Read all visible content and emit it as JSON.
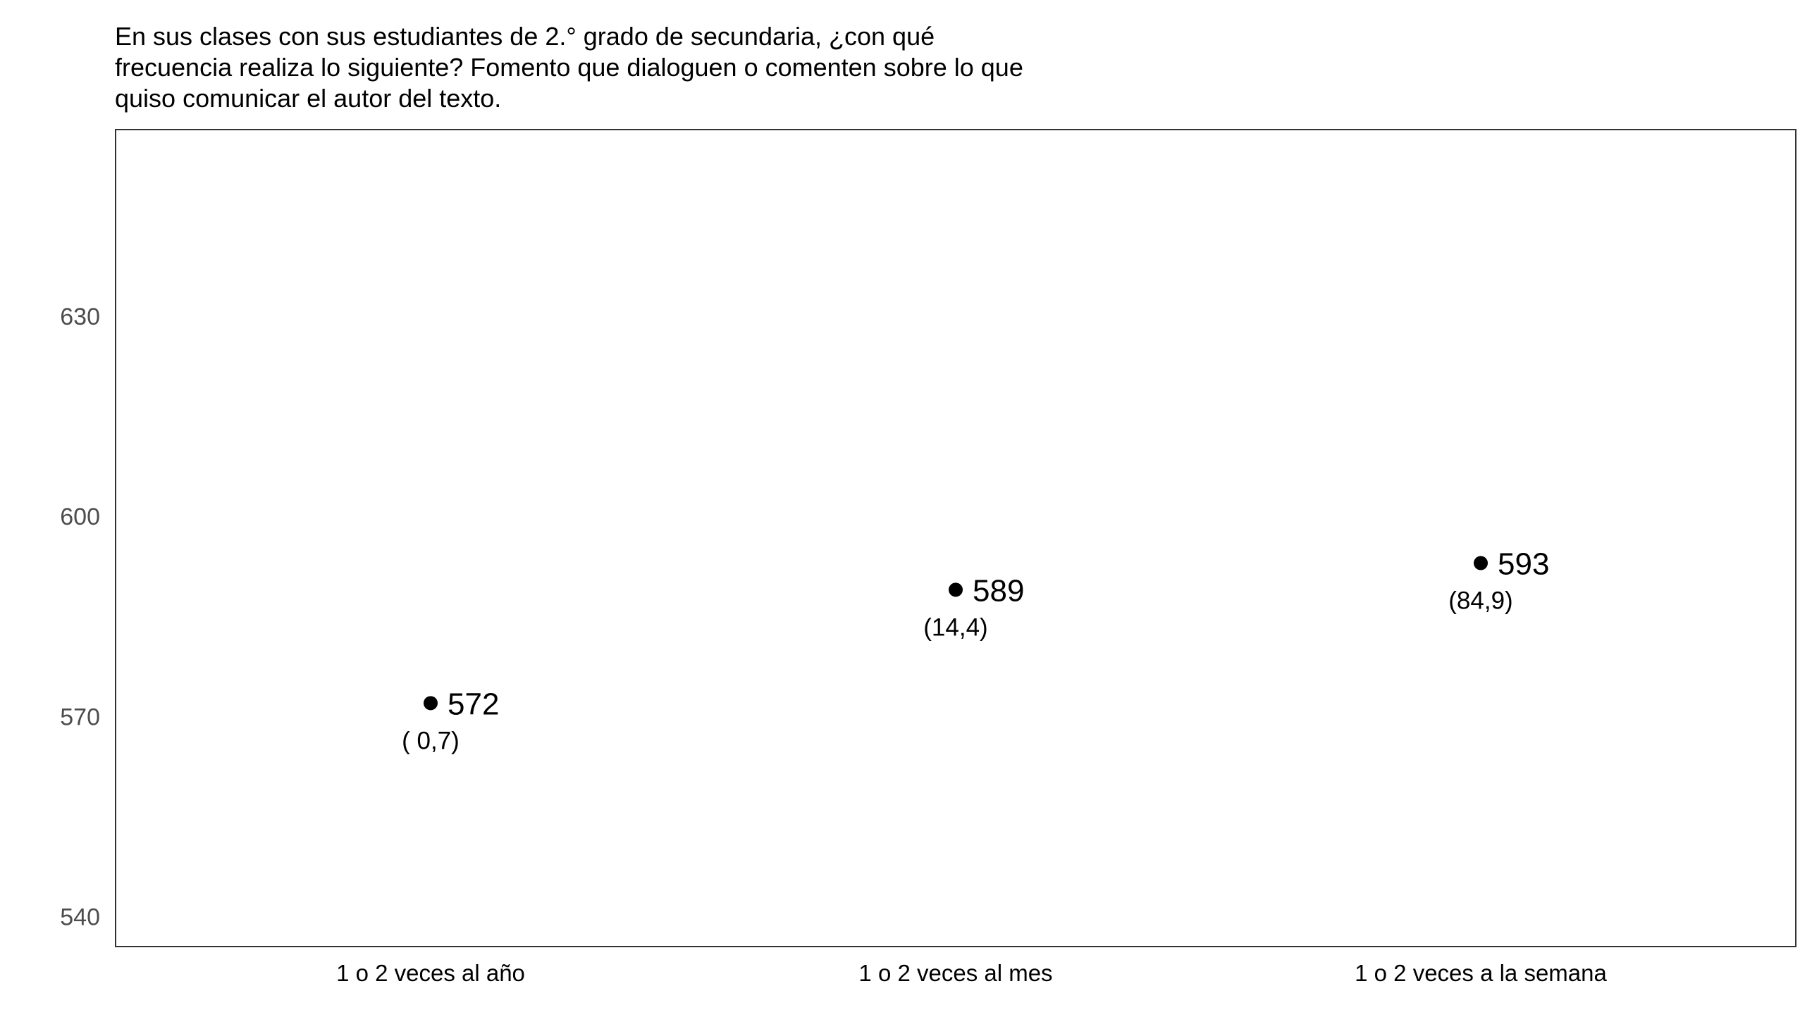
{
  "chart_data": {
    "type": "scatter",
    "title_lines": [
      "En sus clases con sus estudiantes de 2.° grado de secundaria, ¿con qué",
      "frecuencia realiza lo siguiente? Fomento que dialoguen o comenten sobre lo que",
      "quiso comunicar el autor del texto."
    ],
    "categories": [
      "1 o 2 veces al año",
      "1 o 2 veces al mes",
      "1 o 2 veces a la semana"
    ],
    "values": [
      572,
      589,
      593
    ],
    "value_labels": [
      "572",
      "589",
      "593"
    ],
    "percent_labels": [
      "( 0,7)",
      "(14,4)",
      "(84,9)"
    ],
    "ylim": [
      535.5,
      658
    ],
    "yticks": [
      540,
      570,
      600,
      630
    ],
    "ytick_labels": [
      "540",
      "570",
      "600",
      "630"
    ],
    "xlabel": "",
    "ylabel": "",
    "grid": false,
    "legend": "none",
    "colors": {
      "point": "#000000",
      "frame": "#333333",
      "tick_text": "#4d4d4d",
      "background": "#ffffff"
    }
  }
}
